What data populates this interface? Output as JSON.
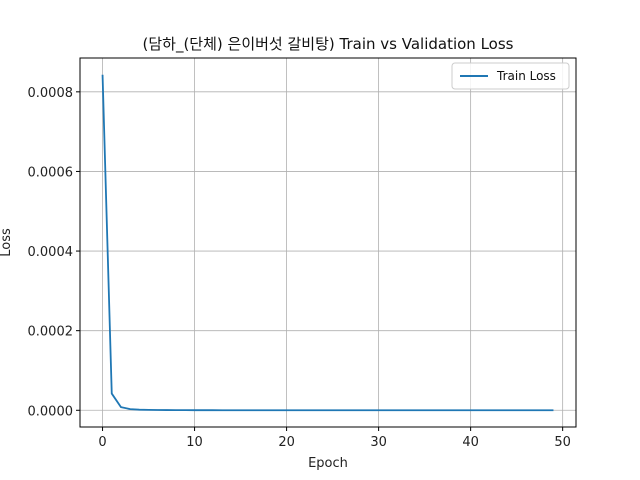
{
  "chart_data": {
    "type": "line",
    "title": "(담하_(단체) 은이버섯 갈비탕) Train vs Validation Loss",
    "xlabel": "Epoch",
    "ylabel": "Loss",
    "xlim": [
      -2.45,
      51.45
    ],
    "ylim": [
      -4.2e-05,
      0.000885
    ],
    "xticks": [
      0,
      10,
      20,
      30,
      40,
      50
    ],
    "yticks": [
      0.0,
      0.0002,
      0.0004,
      0.0006,
      0.0008
    ],
    "ytick_labels": [
      "0.0000",
      "0.0002",
      "0.0004",
      "0.0006",
      "0.0008"
    ],
    "grid": true,
    "legend_position": "top-right",
    "series": [
      {
        "name": "Train Loss",
        "color": "#1f77b4",
        "x": [
          0,
          1,
          2,
          3,
          4,
          5,
          6,
          7,
          8,
          9,
          10,
          11,
          12,
          13,
          14,
          15,
          16,
          17,
          18,
          19,
          20,
          21,
          22,
          23,
          24,
          25,
          26,
          27,
          28,
          29,
          30,
          31,
          32,
          33,
          34,
          35,
          36,
          37,
          38,
          39,
          40,
          41,
          42,
          43,
          44,
          45,
          46,
          47,
          48,
          49
        ],
        "y": [
          0.000843,
          4.2e-05,
          8e-06,
          3e-06,
          1.5e-06,
          1e-06,
          7e-07,
          5e-07,
          4e-07,
          3e-07,
          2e-07,
          2e-07,
          2e-07,
          1e-07,
          1e-07,
          1e-07,
          1e-07,
          1e-07,
          1e-07,
          1e-07,
          1e-07,
          1e-07,
          1e-07,
          1e-07,
          1e-07,
          1e-07,
          1e-07,
          1e-07,
          1e-07,
          1e-07,
          1e-07,
          1e-07,
          1e-07,
          1e-07,
          1e-07,
          1e-07,
          1e-07,
          1e-07,
          1e-07,
          1e-07,
          1e-07,
          1e-07,
          1e-07,
          1e-07,
          1e-07,
          1e-07,
          1e-07,
          1e-07,
          1e-07,
          1e-07
        ]
      }
    ]
  }
}
